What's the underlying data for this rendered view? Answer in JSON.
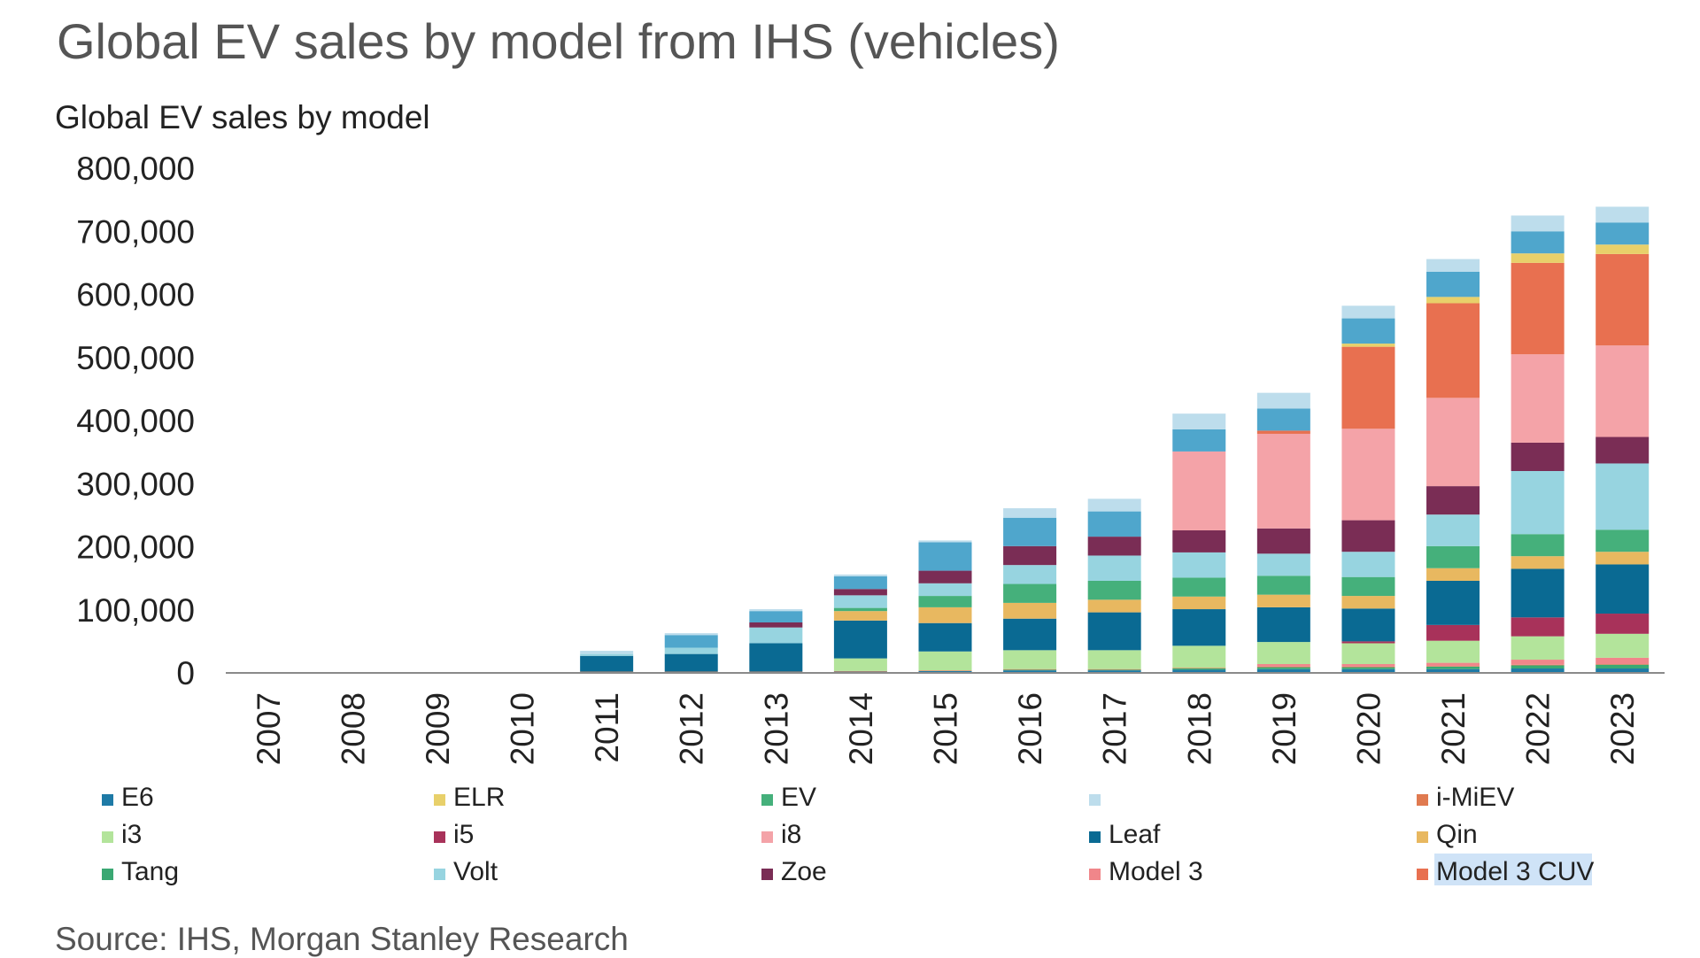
{
  "title": "Global EV sales by model from IHS (vehicles)",
  "subtitle": "Global EV sales by model",
  "source": "Source: IHS, Morgan Stanley Research",
  "chart_data": {
    "type": "bar",
    "stacked": true,
    "categories": [
      "2007",
      "2008",
      "2009",
      "2010",
      "2011",
      "2012",
      "2013",
      "2014",
      "2015",
      "2016",
      "2017",
      "2018",
      "2019",
      "2020",
      "2021",
      "2022",
      "2023"
    ],
    "y_ticks": [
      "800,000",
      "700,000",
      "600,000",
      "500,000",
      "400,000",
      "300,000",
      "200,000",
      "100,000",
      "0"
    ],
    "ylim": [
      0,
      800000
    ],
    "grid": false,
    "legend_position": "bottom",
    "series": [
      {
        "name": "E6",
        "color": "#1e7aa6",
        "values": [
          0,
          0,
          0,
          0,
          0,
          0,
          0,
          2000,
          3000,
          4000,
          4000,
          5000,
          6000,
          6000,
          6000,
          7000,
          7000
        ]
      },
      {
        "name": "Tang",
        "color": "#3aa873",
        "values": [
          0,
          0,
          0,
          0,
          0,
          0,
          0,
          0,
          0,
          1000,
          1000,
          2000,
          3000,
          3000,
          4000,
          5000,
          6000
        ]
      },
      {
        "name": "i-MiEV",
        "color": "#e07a50",
        "values": [
          0,
          0,
          0,
          0,
          2000,
          2000,
          2000,
          1000,
          1000,
          1000,
          1000,
          1000,
          1000,
          1000,
          1000,
          1000,
          1000
        ]
      },
      {
        "name": "Model 3",
        "color": "#f0868a",
        "values": [
          0,
          0,
          0,
          0,
          0,
          0,
          0,
          0,
          0,
          0,
          0,
          0,
          4000,
          4000,
          5000,
          8000,
          10000
        ]
      },
      {
        "name": "i3",
        "color": "#b3e49b",
        "values": [
          0,
          0,
          0,
          0,
          0,
          0,
          0,
          20000,
          30000,
          30000,
          30000,
          35000,
          35000,
          33000,
          35000,
          37000,
          38000
        ]
      },
      {
        "name": "i5",
        "color": "#a8325a",
        "values": [
          0,
          0,
          0,
          0,
          0,
          0,
          0,
          0,
          0,
          0,
          0,
          0,
          0,
          3000,
          25000,
          30000,
          32000
        ]
      },
      {
        "name": "Leaf",
        "color": "#0a6a93",
        "values": [
          0,
          0,
          0,
          0,
          25000,
          28000,
          45000,
          60000,
          45000,
          50000,
          60000,
          58000,
          55000,
          52000,
          70000,
          77000,
          78000
        ]
      },
      {
        "name": "Qin",
        "color": "#e8b860",
        "values": [
          0,
          0,
          0,
          0,
          0,
          0,
          0,
          15000,
          25000,
          25000,
          20000,
          20000,
          20000,
          20000,
          20000,
          20000,
          20000
        ]
      },
      {
        "name": "EV",
        "color": "#45b07b",
        "values": [
          0,
          0,
          0,
          0,
          0,
          0,
          0,
          5000,
          18000,
          30000,
          30000,
          30000,
          30000,
          30000,
          35000,
          35000,
          35000
        ]
      },
      {
        "name": "Volt",
        "color": "#97d4e0",
        "values": [
          0,
          0,
          0,
          0,
          3000,
          10000,
          25000,
          20000,
          20000,
          30000,
          40000,
          40000,
          35000,
          40000,
          50000,
          100000,
          105000
        ]
      },
      {
        "name": "Zoe",
        "color": "#7a2d55",
        "values": [
          0,
          0,
          0,
          0,
          0,
          0,
          8000,
          10000,
          20000,
          30000,
          30000,
          35000,
          40000,
          50000,
          45000,
          45000,
          42000
        ]
      },
      {
        "name": "i8",
        "color": "#f4a3a8",
        "values": [
          0,
          0,
          0,
          0,
          0,
          0,
          0,
          0,
          0,
          0,
          0,
          125000,
          150000,
          145000,
          140000,
          140000,
          145000
        ]
      },
      {
        "name": "Model 3 CUV",
        "color": "#e87050",
        "values": [
          0,
          0,
          0,
          0,
          0,
          0,
          0,
          0,
          0,
          0,
          0,
          0,
          5000,
          130000,
          150000,
          145000,
          145000
        ]
      },
      {
        "name": "ELR",
        "color": "#e8d06a",
        "values": [
          0,
          0,
          0,
          0,
          0,
          0,
          0,
          0,
          0,
          0,
          0,
          0,
          0,
          5000,
          10000,
          15000,
          15000
        ]
      },
      {
        "name": "",
        "color": "#4fa6cc",
        "values": [
          0,
          0,
          0,
          0,
          0,
          20000,
          18000,
          20000,
          45000,
          45000,
          40000,
          35000,
          35000,
          40000,
          40000,
          35000,
          35000
        ]
      },
      {
        "name": "",
        "color": "#bdddec",
        "values": [
          0,
          0,
          0,
          0,
          5000,
          3000,
          3000,
          3000,
          3000,
          15000,
          20000,
          25000,
          25000,
          20000,
          20000,
          25000,
          25000
        ]
      }
    ],
    "legend": [
      {
        "label": "E6",
        "color": "#1e7aa6"
      },
      {
        "label": "ELR",
        "color": "#e8d06a"
      },
      {
        "label": "EV",
        "color": "#45b07b"
      },
      {
        "label": "",
        "color": "#bdddec"
      },
      {
        "label": "i-MiEV",
        "color": "#e07a50"
      },
      {
        "label": "i3",
        "color": "#b3e49b"
      },
      {
        "label": "i5",
        "color": "#a8325a"
      },
      {
        "label": "i8",
        "color": "#f4a3a8"
      },
      {
        "label": "Leaf",
        "color": "#0a6a93"
      },
      {
        "label": "Qin",
        "color": "#e8b860"
      },
      {
        "label": "Tang",
        "color": "#3aa873"
      },
      {
        "label": "Volt",
        "color": "#97d4e0"
      },
      {
        "label": "Zoe",
        "color": "#7a2d55"
      },
      {
        "label": "Model 3",
        "color": "#f0868a"
      },
      {
        "label": "Model 3 CUV",
        "color": "#e87050"
      }
    ]
  }
}
